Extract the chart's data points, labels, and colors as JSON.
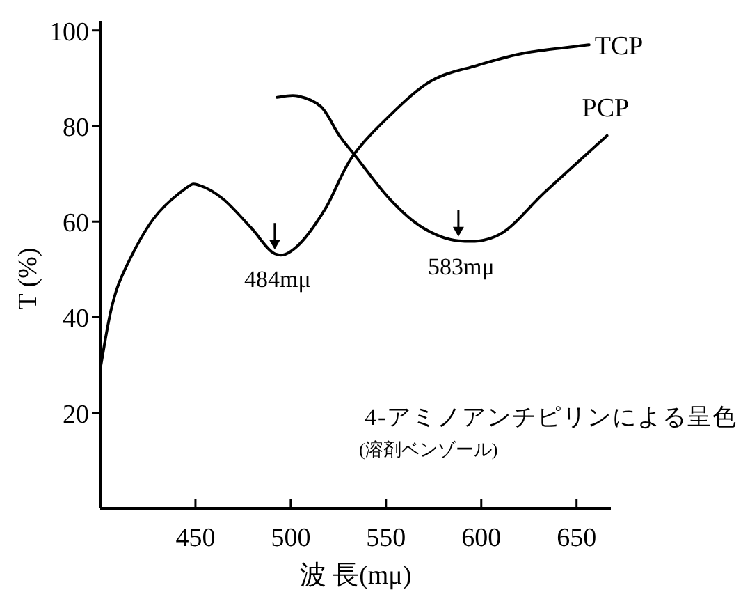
{
  "chart_data": {
    "type": "line",
    "xlabel": "波 長(mμ)",
    "ylabel": "T (%)",
    "xlim": [
      400,
      668
    ],
    "ylim": [
      0,
      102
    ],
    "xticks": [
      450,
      500,
      550,
      600,
      650
    ],
    "yticks": [
      20,
      40,
      60,
      80,
      100
    ],
    "series": [
      {
        "name": "TCP",
        "color": "#000000",
        "x": [
          400.4,
          406,
          413,
          428,
          445,
          452,
          464.6,
          479,
          491.6,
          503,
          518,
          532,
          552,
          574,
          598,
          623,
          656.6
        ],
        "values": [
          30,
          42,
          50,
          60.6,
          67,
          67.6,
          64.7,
          58.8,
          53.3,
          54.7,
          62.6,
          73.4,
          82.2,
          89.5,
          92.7,
          95.3,
          97
        ]
      },
      {
        "name": "PCP",
        "color": "#000000",
        "x": [
          492.8,
          503.6,
          516,
          525.5,
          534,
          552,
          569,
          588,
          610,
          634,
          666
        ],
        "values": [
          86,
          86.3,
          84,
          78,
          73.7,
          64.7,
          58.8,
          56,
          57.4,
          66.4,
          78
        ]
      }
    ],
    "annotations": [
      {
        "text": "484mμ",
        "x": 491.6,
        "y": 53.3
      },
      {
        "text": "583mμ",
        "x": 588,
        "y": 56
      },
      "4-アミノアンチピリンによる呈色",
      "(溶剤ベンゾール)"
    ]
  }
}
